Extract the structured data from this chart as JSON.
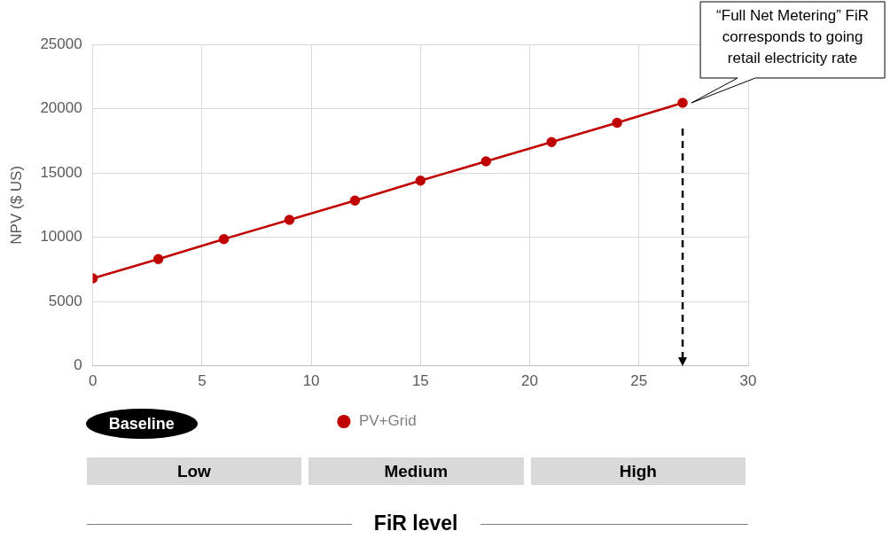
{
  "chart_data": {
    "type": "line",
    "ylabel": "NPV ($ US)",
    "x": [
      0,
      3,
      6,
      9,
      12,
      15,
      18,
      21,
      24,
      27
    ],
    "series": [
      {
        "name": "PV+Grid",
        "color": "#c00000",
        "values": [
          6800,
          8300,
          9850,
          11350,
          12850,
          14400,
          15900,
          17400,
          18900,
          20450
        ]
      }
    ],
    "xlim": [
      0,
      30
    ],
    "xticks": [
      0,
      5,
      10,
      15,
      20,
      25,
      30
    ],
    "ylim": [
      0,
      25000
    ],
    "yticks": [
      0,
      5000,
      10000,
      15000,
      20000,
      25000
    ],
    "grid": true,
    "legend": "bottom",
    "marker": "circle",
    "ref_lines": [
      {
        "axis": "x",
        "value": 27,
        "label": "“Full Net Metering” FiR corresponds to going retail electricity rate",
        "color": "#000000",
        "line_style": "dashed"
      }
    ],
    "annotations": [
      "Baseline",
      "Low",
      "Medium",
      "High",
      "FiR level"
    ]
  }
}
